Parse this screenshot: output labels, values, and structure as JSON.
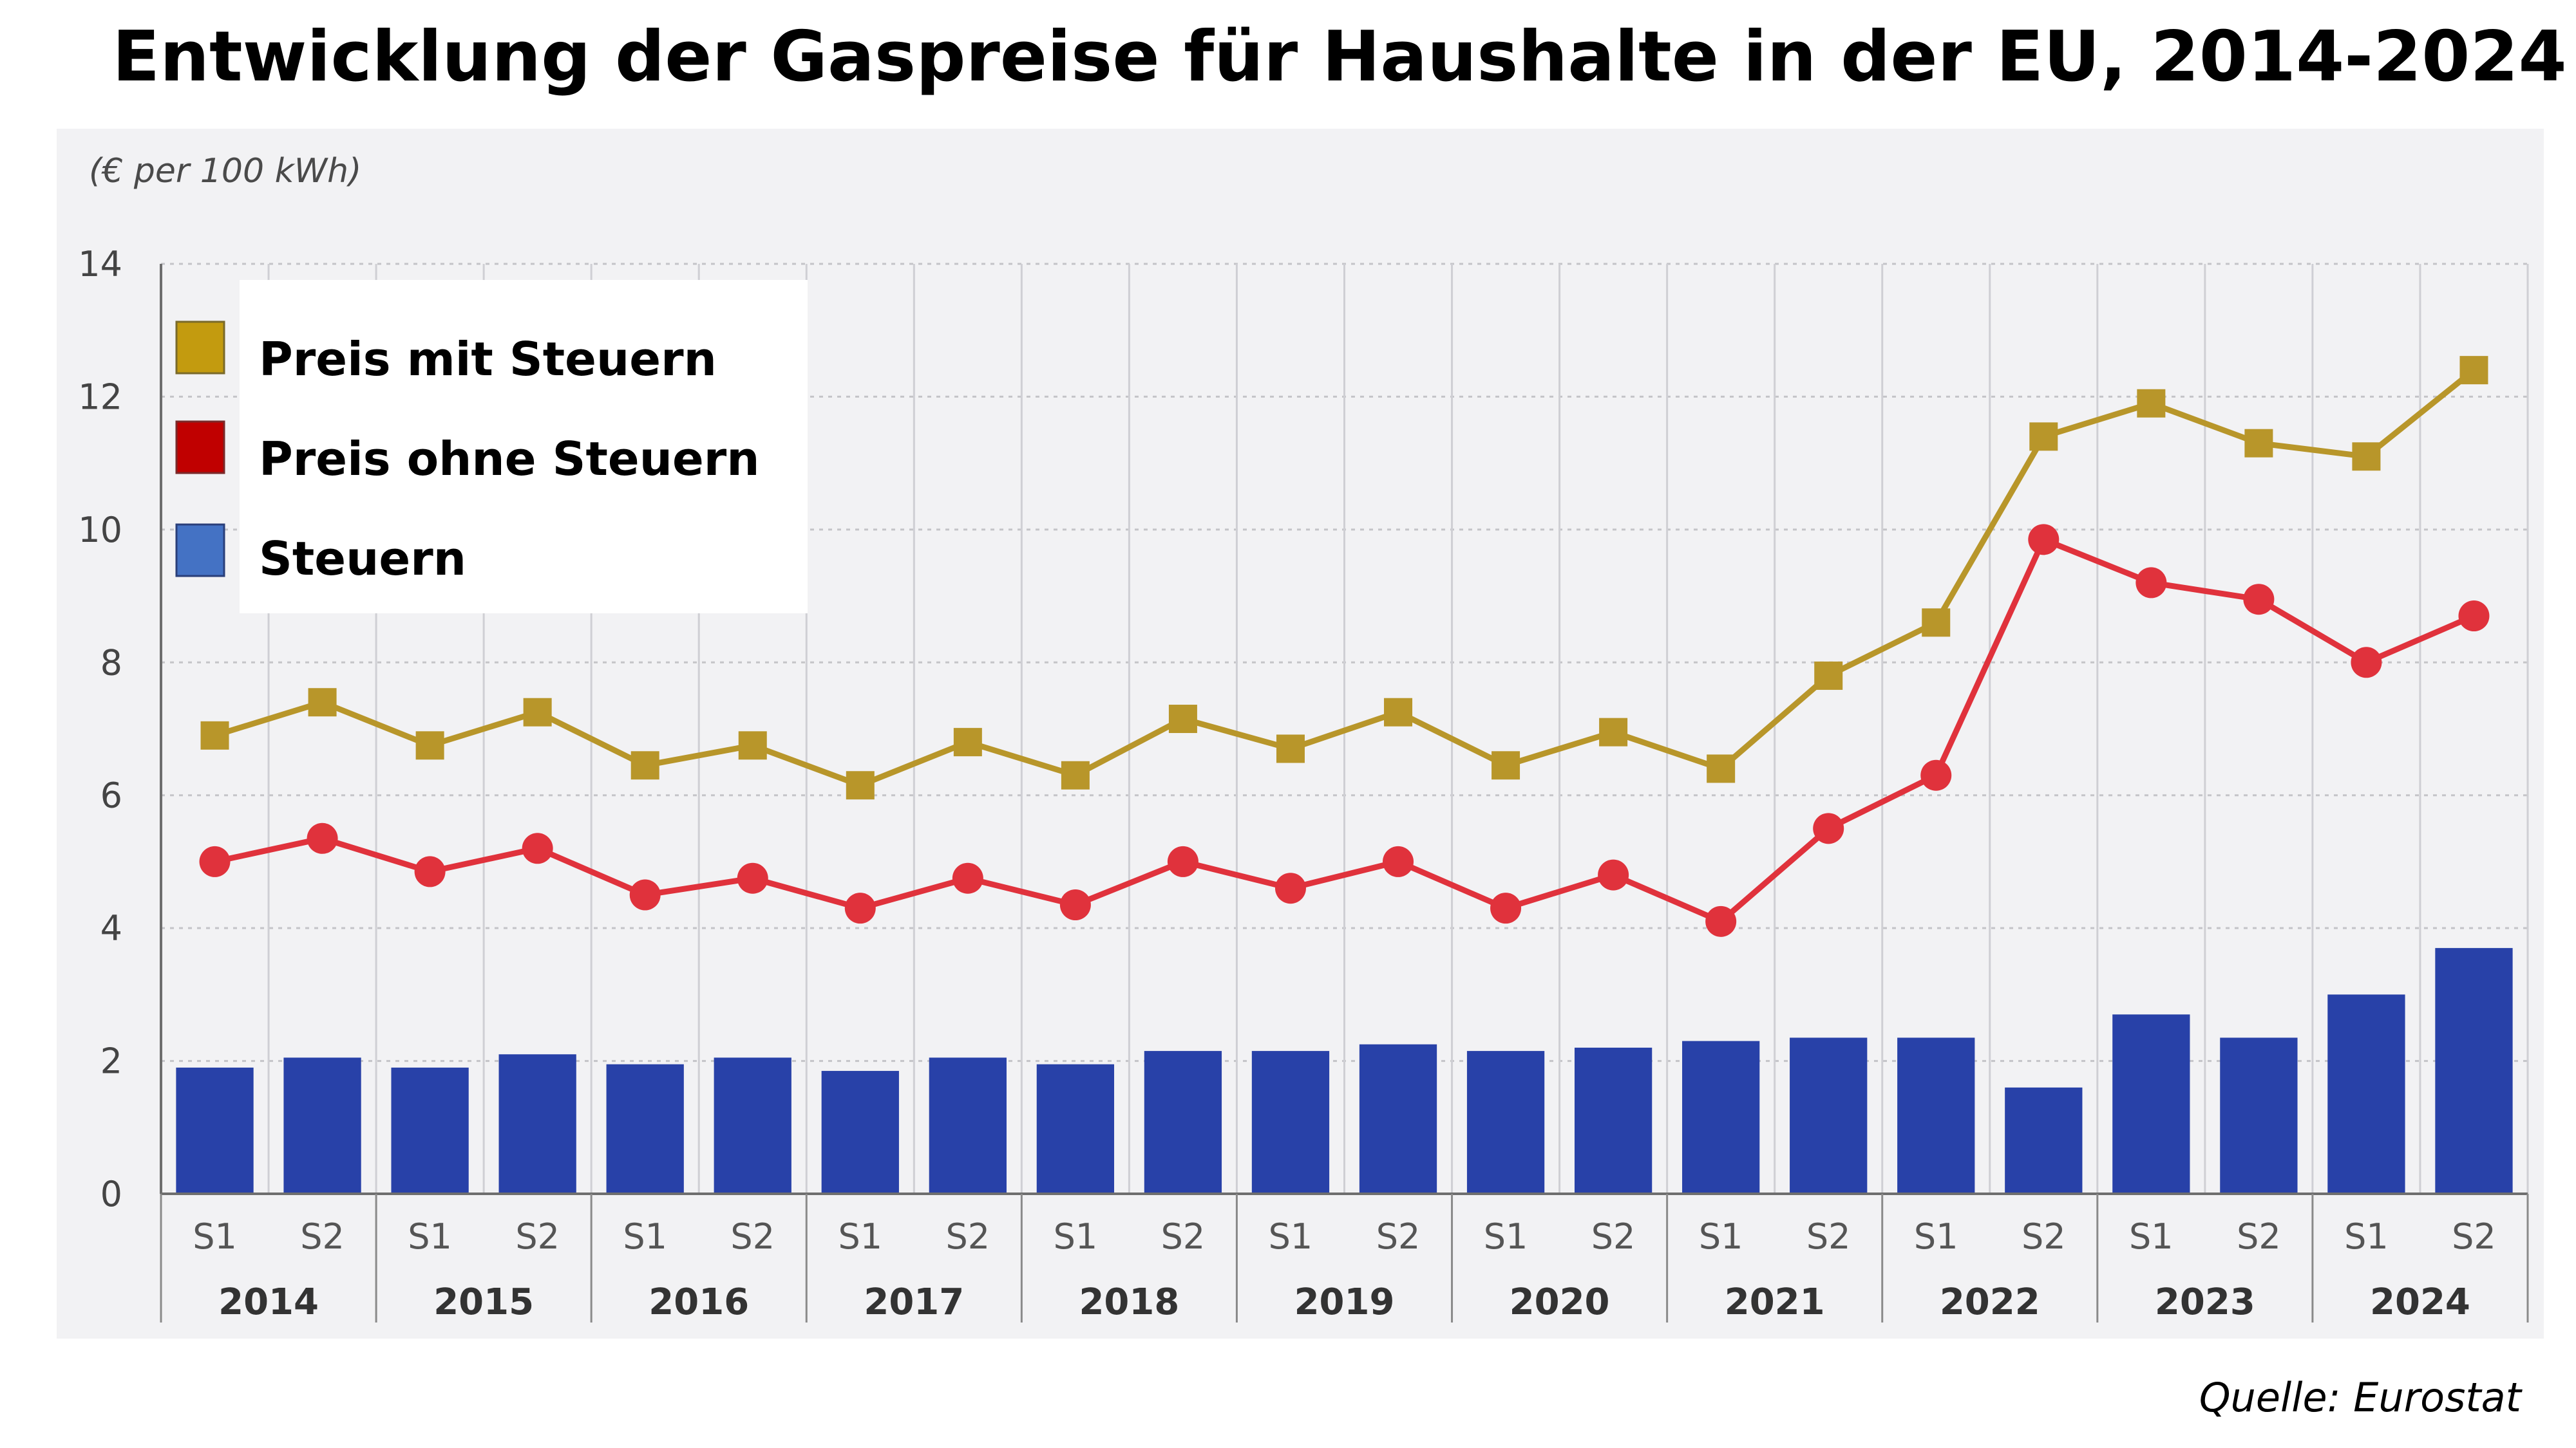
{
  "chart_data": {
    "type": "bar",
    "title": "Entwicklung der Gaspreise für Haushalte in der EU, 2014-2024",
    "unit_label": "(€ per 100 kWh)",
    "source": "Quelle: Eurostat",
    "ylim": [
      0,
      14
    ],
    "yticks": [
      "0",
      "2",
      "4",
      "6",
      "8",
      "10",
      "12",
      "14"
    ],
    "grid": true,
    "legend_position": "top-left",
    "years": [
      "2014",
      "2015",
      "2016",
      "2017",
      "2018",
      "2019",
      "2020",
      "2021",
      "2022",
      "2023",
      "2024"
    ],
    "categories": [
      "S1",
      "S2",
      "S1",
      "S2",
      "S1",
      "S2",
      "S1",
      "S2",
      "S1",
      "S2",
      "S1",
      "S2",
      "S1",
      "S2",
      "S1",
      "S2",
      "S1",
      "S2",
      "S1",
      "S2",
      "S1",
      "S2"
    ],
    "series": [
      {
        "name": "Preis mit Steuern",
        "type": "line",
        "marker": "square",
        "color": "#b8962a",
        "values": [
          6.9,
          7.4,
          6.75,
          7.25,
          6.45,
          6.75,
          6.15,
          6.8,
          6.3,
          7.15,
          6.7,
          7.25,
          6.45,
          6.95,
          6.4,
          7.8,
          8.6,
          11.4,
          11.9,
          11.3,
          11.1,
          12.4
        ]
      },
      {
        "name": "Preis ohne Steuern",
        "type": "line",
        "marker": "circle",
        "color": "#e0323c",
        "values": [
          5.0,
          5.35,
          4.85,
          5.2,
          4.5,
          4.75,
          4.3,
          4.75,
          4.35,
          5.0,
          4.6,
          5.0,
          4.3,
          4.8,
          4.1,
          5.5,
          6.3,
          9.85,
          9.2,
          8.95,
          8.0,
          8.7
        ]
      },
      {
        "name": "Steuern",
        "type": "bar",
        "color": "#2841a8",
        "legend_color": "#4472c4",
        "values": [
          1.9,
          2.05,
          1.9,
          2.1,
          1.95,
          2.05,
          1.85,
          2.05,
          1.95,
          2.15,
          2.15,
          2.25,
          2.15,
          2.2,
          2.3,
          2.35,
          2.35,
          1.6,
          2.7,
          2.35,
          3.0,
          3.7
        ]
      }
    ]
  }
}
